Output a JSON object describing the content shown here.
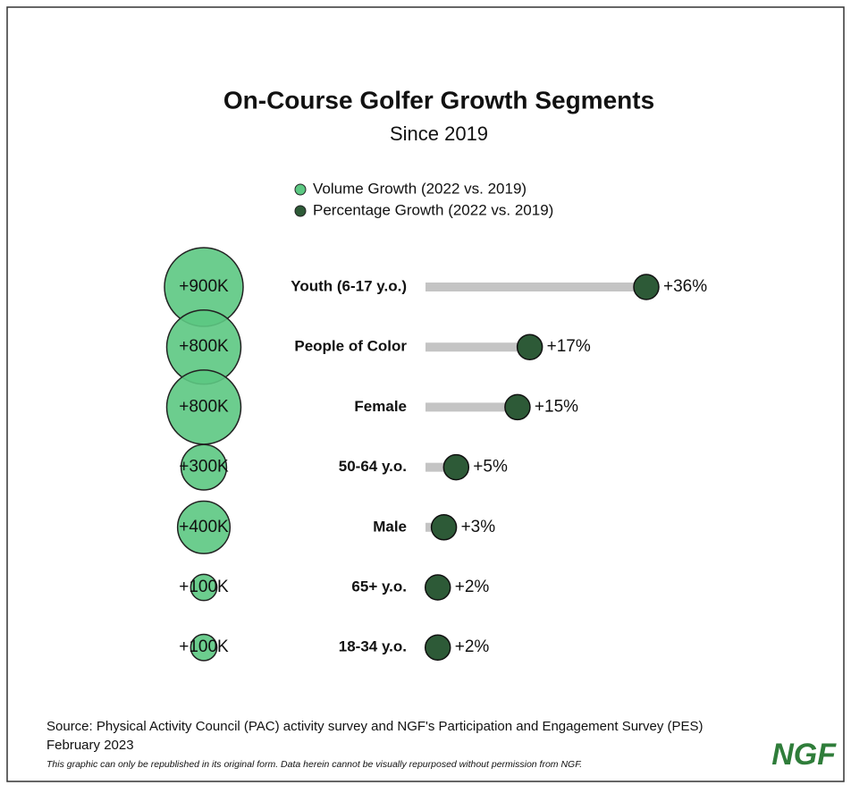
{
  "chart_data": {
    "type": "lollipop",
    "title": "On-Course Golfer Growth Segments",
    "subtitle": "Since 2019",
    "categories": [
      "Youth (6-17 y.o.)",
      "People of Color",
      "Female",
      "50-64 y.o.",
      "Male",
      "65+ y.o.",
      "18-34 y.o."
    ],
    "series": [
      {
        "name": "Volume Growth (2022 vs. 2019)",
        "color": "#5cc882",
        "values": [
          900000,
          800000,
          800000,
          300000,
          400000,
          100000,
          100000
        ],
        "value_labels": [
          "+900K",
          "+800K",
          "+800K",
          "+300K",
          "+400K",
          "+100K",
          "+100K"
        ]
      },
      {
        "name": "Percentage Growth (2022 vs. 2019)",
        "color": "#2d5a37",
        "values": [
          36,
          17,
          15,
          5,
          3,
          2,
          2
        ],
        "value_labels": [
          "+36%",
          "+17%",
          "+15%",
          "+5%",
          "+3%",
          "+2%",
          "+2%"
        ]
      }
    ],
    "source": "Source: Physical Activity Council (PAC) activity survey and NGF's Participation and Engagement Survey (PES)",
    "date": "February 2023",
    "note": "This graphic can only be republished in its original form. Data herein cannot be visually repurposed without permission from NGF.",
    "logo": "NGF"
  }
}
